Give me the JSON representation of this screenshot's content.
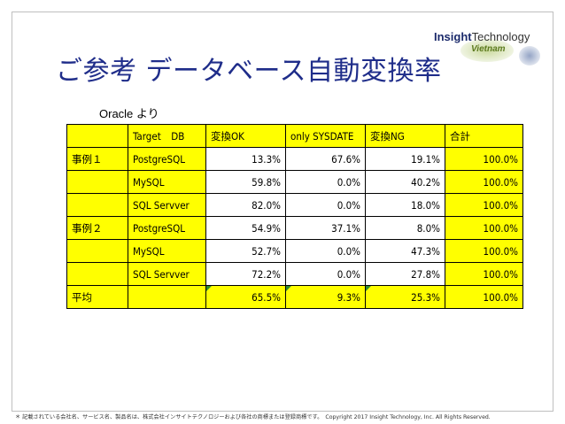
{
  "slide": {
    "title": "ご参考 データベース自動変換率",
    "subtitle": "Oracle より",
    "logo": {
      "brand_prefix": "Insight",
      "brand_suffix": "Technology",
      "country": "Vietnam"
    },
    "footer": "＊ 記載されている会社名、サービス名、製品名は、株式会社インサイトテクノロジーおよび各社の商標または登録商標です。　Copyright 2017 Insight Technology, Inc. All Rights Reserved."
  },
  "table": {
    "headers": [
      "",
      "Target　DB",
      "変換OK",
      "only SYSDATE",
      "変換NG",
      "合計"
    ],
    "rows": [
      {
        "group": "事例１",
        "db": "PostgreSQL",
        "ok": "13.3%",
        "sysdate": "67.6%",
        "ng": "19.1%",
        "total": "100.0%"
      },
      {
        "group": "",
        "db": "MySQL",
        "ok": "59.8%",
        "sysdate": "0.0%",
        "ng": "40.2%",
        "total": "100.0%"
      },
      {
        "group": "",
        "db": "SQL Servver",
        "ok": "82.0%",
        "sysdate": "0.0%",
        "ng": "18.0%",
        "total": "100.0%"
      },
      {
        "group": "事例２",
        "db": "PostgreSQL",
        "ok": "54.9%",
        "sysdate": "37.1%",
        "ng": "8.0%",
        "total": "100.0%"
      },
      {
        "group": "",
        "db": "MySQL",
        "ok": "52.7%",
        "sysdate": "0.0%",
        "ng": "47.3%",
        "total": "100.0%"
      },
      {
        "group": "",
        "db": "SQL Servver",
        "ok": "72.2%",
        "sysdate": "0.0%",
        "ng": "27.8%",
        "total": "100.0%"
      }
    ],
    "average": {
      "group": "平均",
      "db": "",
      "ok": "65.5%",
      "sysdate": "9.3%",
      "ng": "25.3%",
      "total": "100.0%"
    }
  },
  "colors": {
    "title": "#1f2d8a",
    "highlight": "#ffff00",
    "marker": "#2e8b2e"
  }
}
